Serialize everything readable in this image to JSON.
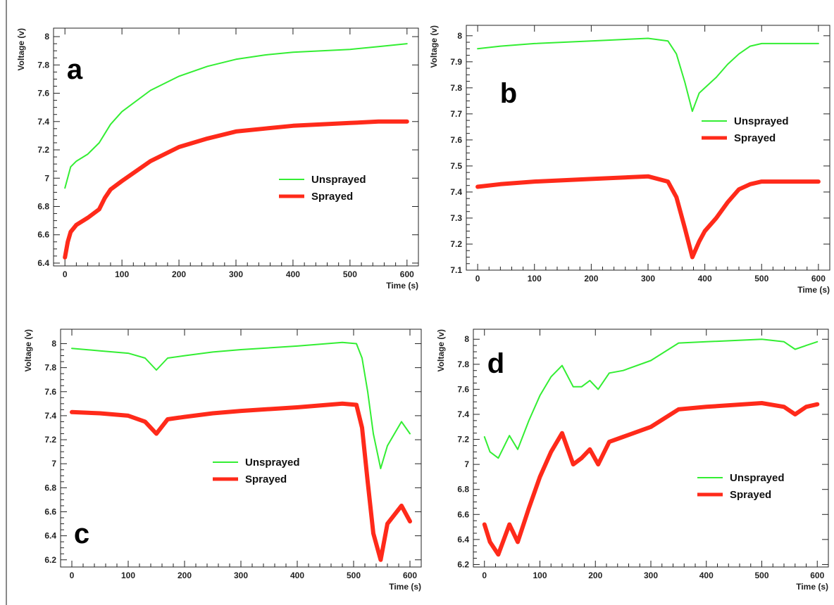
{
  "colors": {
    "unsprayed": "#33ee33",
    "sprayed": "#ff2a1a",
    "axis": "#222222"
  },
  "chart_data": [
    {
      "type": "line",
      "panel_label": "a",
      "xlabel": "Time (s)",
      "ylabel": "Voltage (v)",
      "xlim": [
        -20,
        620
      ],
      "ylim": [
        6.38,
        8.06
      ],
      "xticks": [
        0,
        100,
        200,
        300,
        400,
        500,
        600
      ],
      "yticks": [
        6.4,
        6.6,
        6.8,
        7,
        7.2,
        7.4,
        7.6,
        7.8,
        8
      ],
      "legend_position": "right-middle",
      "series": [
        {
          "name": "Unsprayed",
          "x": [
            0,
            10,
            20,
            40,
            60,
            80,
            100,
            150,
            200,
            250,
            300,
            350,
            400,
            450,
            500,
            550,
            600
          ],
          "y": [
            6.93,
            7.08,
            7.12,
            7.17,
            7.25,
            7.38,
            7.47,
            7.62,
            7.72,
            7.79,
            7.84,
            7.87,
            7.89,
            7.9,
            7.91,
            7.93,
            7.95
          ]
        },
        {
          "name": "Sprayed",
          "x": [
            0,
            5,
            10,
            20,
            40,
            60,
            70,
            80,
            100,
            150,
            200,
            250,
            300,
            350,
            400,
            450,
            500,
            550,
            600
          ],
          "y": [
            6.44,
            6.55,
            6.62,
            6.67,
            6.72,
            6.78,
            6.86,
            6.92,
            6.98,
            7.12,
            7.22,
            7.28,
            7.33,
            7.35,
            7.37,
            7.38,
            7.39,
            7.4,
            7.4
          ]
        }
      ]
    },
    {
      "type": "line",
      "panel_label": "b",
      "xlabel": "Time (s)",
      "ylabel": "Voltage (v)",
      "xlim": [
        -20,
        620
      ],
      "ylim": [
        7.1,
        8.04
      ],
      "xticks": [
        0,
        100,
        200,
        300,
        400,
        500,
        600
      ],
      "yticks": [
        7.1,
        7.2,
        7.3,
        7.4,
        7.5,
        7.6,
        7.7,
        7.8,
        7.9,
        8
      ],
      "legend_position": "right-middle",
      "series": [
        {
          "name": "Unsprayed",
          "x": [
            0,
            40,
            100,
            200,
            300,
            335,
            350,
            365,
            378,
            390,
            400,
            420,
            440,
            460,
            480,
            500,
            600
          ],
          "y": [
            7.95,
            7.96,
            7.97,
            7.98,
            7.99,
            7.98,
            7.93,
            7.82,
            7.71,
            7.78,
            7.8,
            7.84,
            7.89,
            7.93,
            7.96,
            7.97,
            7.97
          ]
        },
        {
          "name": "Sprayed",
          "x": [
            0,
            40,
            100,
            200,
            300,
            335,
            350,
            365,
            378,
            390,
            400,
            420,
            440,
            460,
            480,
            500,
            600
          ],
          "y": [
            7.42,
            7.43,
            7.44,
            7.45,
            7.46,
            7.44,
            7.38,
            7.26,
            7.15,
            7.21,
            7.25,
            7.3,
            7.36,
            7.41,
            7.43,
            7.44,
            7.44
          ]
        }
      ]
    },
    {
      "type": "line",
      "panel_label": "c",
      "xlabel": "Time (s)",
      "ylabel": "Voltage (v)",
      "xlim": [
        -20,
        620
      ],
      "ylim": [
        6.14,
        8.12
      ],
      "xticks": [
        0,
        100,
        200,
        300,
        400,
        500,
        600
      ],
      "yticks": [
        6.2,
        6.4,
        6.6,
        6.8,
        7,
        7.2,
        7.4,
        7.6,
        7.8,
        8
      ],
      "legend_position": "center",
      "series": [
        {
          "name": "Unsprayed",
          "x": [
            0,
            50,
            100,
            130,
            150,
            170,
            200,
            250,
            300,
            400,
            480,
            505,
            515,
            525,
            535,
            548,
            560,
            585,
            600
          ],
          "y": [
            7.96,
            7.94,
            7.92,
            7.88,
            7.78,
            7.88,
            7.9,
            7.93,
            7.95,
            7.98,
            8.01,
            8.0,
            7.88,
            7.6,
            7.25,
            6.96,
            7.15,
            7.35,
            7.25
          ]
        },
        {
          "name": "Sprayed",
          "x": [
            0,
            50,
            100,
            130,
            150,
            170,
            200,
            250,
            300,
            400,
            480,
            505,
            515,
            525,
            535,
            548,
            560,
            585,
            600
          ],
          "y": [
            7.43,
            7.42,
            7.4,
            7.35,
            7.25,
            7.37,
            7.39,
            7.42,
            7.44,
            7.47,
            7.5,
            7.49,
            7.3,
            6.85,
            6.42,
            6.2,
            6.5,
            6.65,
            6.52
          ]
        }
      ]
    },
    {
      "type": "line",
      "panel_label": "d",
      "xlabel": "Time (s)",
      "ylabel": "Voltage (v)",
      "xlim": [
        -20,
        620
      ],
      "ylim": [
        6.18,
        8.08
      ],
      "xticks": [
        0,
        100,
        200,
        300,
        400,
        500,
        600
      ],
      "yticks": [
        6.2,
        6.4,
        6.6,
        6.8,
        7,
        7.2,
        7.4,
        7.6,
        7.8,
        8
      ],
      "legend_position": "bottom-right",
      "series": [
        {
          "name": "Unsprayed",
          "x": [
            0,
            10,
            25,
            45,
            60,
            80,
            100,
            120,
            140,
            160,
            175,
            190,
            205,
            225,
            250,
            300,
            350,
            400,
            500,
            540,
            560,
            580,
            600
          ],
          "y": [
            7.22,
            7.1,
            7.05,
            7.23,
            7.12,
            7.35,
            7.55,
            7.7,
            7.79,
            7.62,
            7.62,
            7.67,
            7.6,
            7.73,
            7.75,
            7.83,
            7.97,
            7.98,
            8.0,
            7.98,
            7.92,
            7.95,
            7.98
          ]
        },
        {
          "name": "Sprayed",
          "x": [
            0,
            10,
            25,
            45,
            60,
            80,
            100,
            120,
            140,
            160,
            175,
            190,
            205,
            225,
            250,
            300,
            350,
            400,
            500,
            540,
            560,
            580,
            600
          ],
          "y": [
            6.52,
            6.38,
            6.28,
            6.52,
            6.38,
            6.65,
            6.9,
            7.1,
            7.25,
            7.0,
            7.05,
            7.12,
            7.0,
            7.18,
            7.22,
            7.3,
            7.44,
            7.46,
            7.49,
            7.46,
            7.4,
            7.46,
            7.48
          ]
        }
      ]
    }
  ]
}
